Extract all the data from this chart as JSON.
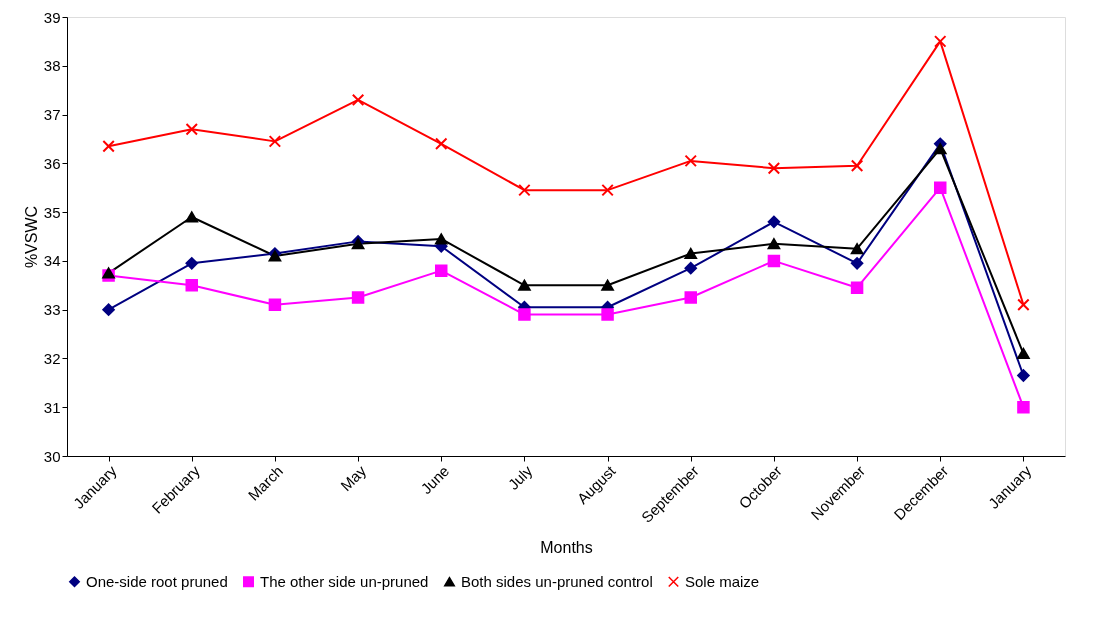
{
  "chart_data": {
    "type": "line",
    "xlabel": "Months",
    "ylabel": "%VSWC",
    "categories": [
      "January",
      "February",
      "March",
      "May",
      "June",
      "July",
      "August",
      "September",
      "October",
      "November",
      "December",
      "January"
    ],
    "ylim": [
      30,
      39
    ],
    "yticks": [
      30,
      31,
      32,
      33,
      34,
      35,
      36,
      37,
      38,
      39
    ],
    "grid": false,
    "legend": "bottom",
    "line_style": "solid",
    "series": [
      {
        "name": "One-side root pruned",
        "color": "#000080",
        "marker": "diamond",
        "values": [
          33.0,
          33.95,
          34.15,
          34.4,
          34.3,
          33.05,
          33.05,
          33.85,
          34.8,
          33.95,
          36.4,
          31.65
        ]
      },
      {
        "name": "The other side un-pruned",
        "color": "#ff00ff",
        "marker": "square",
        "values": [
          33.7,
          33.5,
          33.1,
          33.25,
          33.8,
          32.9,
          32.9,
          33.25,
          34.0,
          33.45,
          35.5,
          31.0
        ]
      },
      {
        "name": "Both sides un-pruned control",
        "color": "#000000",
        "marker": "triangle",
        "values": [
          33.75,
          34.9,
          34.1,
          34.35,
          34.45,
          33.5,
          33.5,
          34.15,
          34.35,
          34.25,
          36.3,
          32.1
        ]
      },
      {
        "name": "Sole maize",
        "color": "#ff0000",
        "marker": "cross",
        "values": [
          36.35,
          36.7,
          36.45,
          37.3,
          36.4,
          35.45,
          35.45,
          36.05,
          35.9,
          35.95,
          38.5,
          33.1
        ]
      }
    ]
  }
}
